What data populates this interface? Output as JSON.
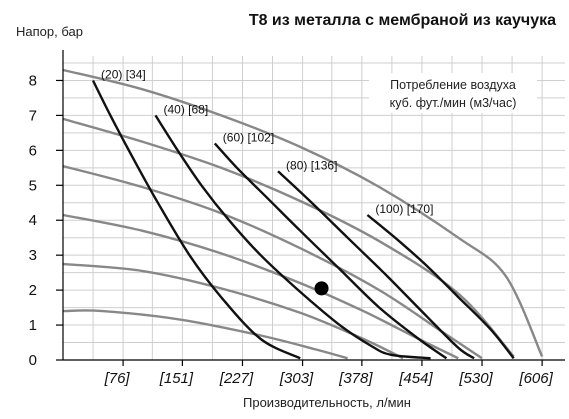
{
  "chart_data": {
    "type": "line",
    "title": "Т8 из металла с мембраной из каучука",
    "xlabel": "Производительность, л/мин",
    "ylabel": "Напор, бар",
    "xlim": [
      0,
      640
    ],
    "ylim": [
      0,
      8.7
    ],
    "yticks": [
      0,
      1,
      2,
      3,
      4,
      5,
      6,
      7,
      8
    ],
    "xticks": [
      {
        "value": 76,
        "label": "[76]"
      },
      {
        "value": 151,
        "label": "[151]"
      },
      {
        "value": 227,
        "label": "[227]"
      },
      {
        "value": 303,
        "label": "[303]"
      },
      {
        "value": 378,
        "label": "[378]"
      },
      {
        "value": 454,
        "label": "[454]"
      },
      {
        "value": 530,
        "label": "[530]"
      },
      {
        "value": 606,
        "label": "[606]"
      }
    ],
    "grid": true,
    "legend_text": [
      "Потребление воздуха",
      "куб. фут./мин (м3/час)"
    ],
    "legend_position": "top-right",
    "colors": {
      "pressure_curves": "#888888",
      "air_curves": "#111111",
      "grid": "#cfcfcf"
    },
    "pressure_curves": [
      {
        "points": [
          [
            0,
            8.3
          ],
          [
            100,
            7.75
          ],
          [
            200,
            7.0
          ],
          [
            300,
            6.1
          ],
          [
            400,
            4.95
          ],
          [
            500,
            3.5
          ],
          [
            560,
            2.4
          ],
          [
            606,
            0.1
          ]
        ]
      },
      {
        "points": [
          [
            0,
            6.9
          ],
          [
            100,
            6.25
          ],
          [
            200,
            5.5
          ],
          [
            300,
            4.55
          ],
          [
            400,
            3.4
          ],
          [
            500,
            1.9
          ],
          [
            570,
            0.1
          ]
        ]
      },
      {
        "points": [
          [
            0,
            5.55
          ],
          [
            100,
            4.95
          ],
          [
            200,
            4.2
          ],
          [
            300,
            3.2
          ],
          [
            400,
            2.0
          ],
          [
            480,
            0.8
          ],
          [
            530,
            0.05
          ]
        ]
      },
      {
        "points": [
          [
            0,
            4.15
          ],
          [
            100,
            3.7
          ],
          [
            200,
            3.05
          ],
          [
            300,
            2.2
          ],
          [
            380,
            1.4
          ],
          [
            450,
            0.6
          ],
          [
            500,
            0.05
          ]
        ]
      },
      {
        "points": [
          [
            0,
            2.75
          ],
          [
            100,
            2.55
          ],
          [
            200,
            2.05
          ],
          [
            300,
            1.35
          ],
          [
            380,
            0.6
          ],
          [
            430,
            0.05
          ]
        ]
      },
      {
        "points": [
          [
            0,
            1.4
          ],
          [
            50,
            1.4
          ],
          [
            150,
            1.15
          ],
          [
            250,
            0.7
          ],
          [
            320,
            0.3
          ],
          [
            360,
            0.05
          ]
        ]
      }
    ],
    "air_curves": [
      {
        "label": "(20) [34]",
        "points": [
          [
            38,
            8.0
          ],
          [
            60,
            7.0
          ],
          [
            88,
            5.8
          ],
          [
            120,
            4.5
          ],
          [
            160,
            3.0
          ],
          [
            200,
            1.8
          ],
          [
            250,
            0.6
          ],
          [
            300,
            0.05
          ]
        ]
      },
      {
        "label": "(40) [68]",
        "points": [
          [
            117,
            7.0
          ],
          [
            145,
            6.0
          ],
          [
            175,
            5.0
          ],
          [
            210,
            4.0
          ],
          [
            250,
            3.0
          ],
          [
            300,
            1.95
          ],
          [
            350,
            1.0
          ],
          [
            390,
            0.4
          ],
          [
            415,
            0.15
          ],
          [
            465,
            0.05
          ]
        ]
      },
      {
        "label": "(60) [102]",
        "points": [
          [
            192,
            6.2
          ],
          [
            220,
            5.5
          ],
          [
            260,
            4.6
          ],
          [
            300,
            3.7
          ],
          [
            350,
            2.6
          ],
          [
            400,
            1.5
          ],
          [
            450,
            0.6
          ],
          [
            485,
            0.05
          ]
        ]
      },
      {
        "label": "(80) [136]",
        "points": [
          [
            272,
            5.4
          ],
          [
            310,
            4.6
          ],
          [
            360,
            3.5
          ],
          [
            410,
            2.4
          ],
          [
            460,
            1.25
          ],
          [
            500,
            0.35
          ],
          [
            520,
            0.05
          ]
        ]
      },
      {
        "label": "(100) [170]",
        "points": [
          [
            385,
            4.15
          ],
          [
            420,
            3.5
          ],
          [
            460,
            2.7
          ],
          [
            500,
            1.8
          ],
          [
            540,
            0.9
          ],
          [
            570,
            0.05
          ]
        ]
      }
    ],
    "marker_point": [
      327,
      2.05
    ]
  }
}
